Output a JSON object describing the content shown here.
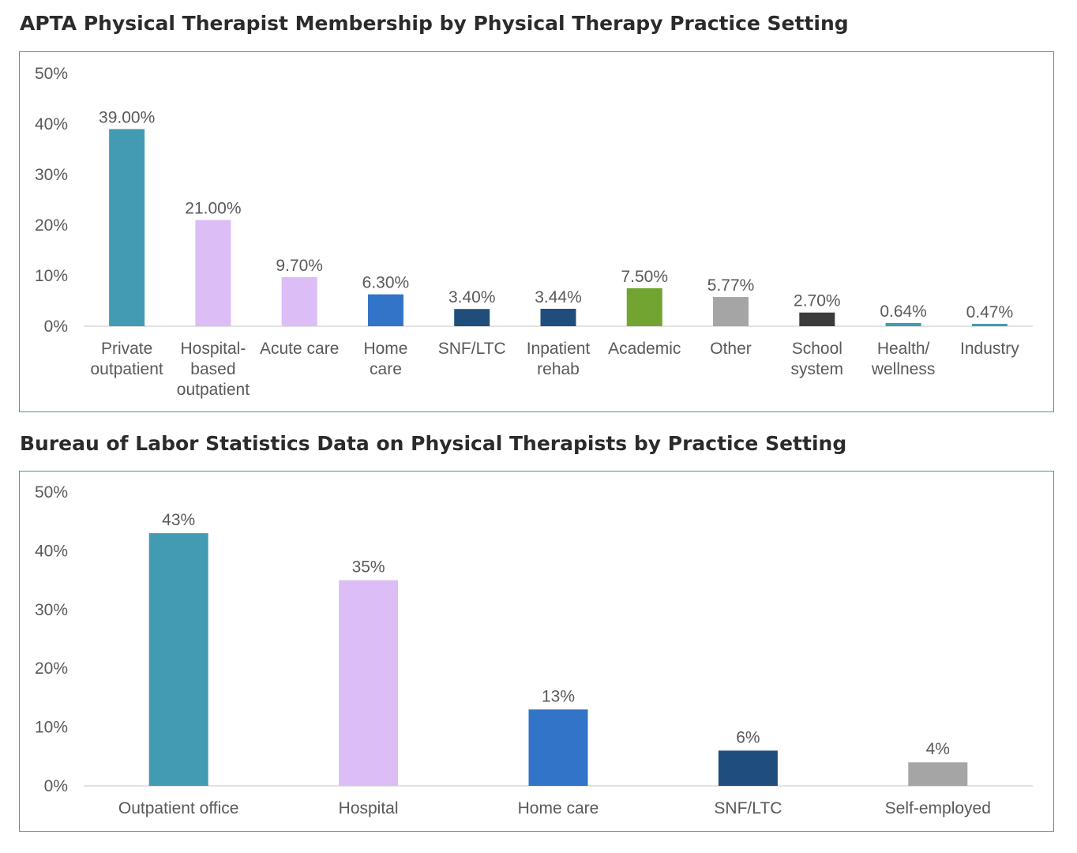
{
  "chart_data": [
    {
      "type": "bar",
      "title": "APTA Physical Therapist Membership by Physical Therapy Practice Setting",
      "categories": [
        [
          "Private",
          "outpatient"
        ],
        [
          "Hospital-",
          "based",
          "outpatient"
        ],
        [
          "Acute care"
        ],
        [
          "Home",
          "care"
        ],
        [
          "SNF/LTC"
        ],
        [
          "Inpatient",
          "rehab"
        ],
        [
          "Academic"
        ],
        [
          "Other"
        ],
        [
          "School",
          "system"
        ],
        [
          "Health/",
          "wellness"
        ],
        [
          "Industry"
        ]
      ],
      "values": [
        39.0,
        21.0,
        9.7,
        6.3,
        3.4,
        3.44,
        7.5,
        5.77,
        2.7,
        0.64,
        0.47
      ],
      "data_labels": [
        "39.00%",
        "21.00%",
        "9.70%",
        "6.30%",
        "3.40%",
        "3.44%",
        "7.50%",
        "5.77%",
        "2.70%",
        "0.64%",
        "0.47%"
      ],
      "colors": [
        "#429bb2",
        "#dcbdf6",
        "#dcbdf6",
        "#3174c8",
        "#1f4e7d",
        "#1f4e7d",
        "#72a432",
        "#a5a5a5",
        "#3b3b3b",
        "#429bb2",
        "#429bb2"
      ],
      "yticks": [
        "0%",
        "10%",
        "20%",
        "30%",
        "40%",
        "50%"
      ],
      "ylim": [
        0,
        50
      ],
      "xlabel": "",
      "ylabel": "",
      "grid": false,
      "legend": "none"
    },
    {
      "type": "bar",
      "title": "Bureau of Labor Statistics Data on Physical Therapists by Practice Setting",
      "categories": [
        [
          "Outpatient office"
        ],
        [
          "Hospital"
        ],
        [
          "Home care"
        ],
        [
          "SNF/LTC"
        ],
        [
          "Self-employed"
        ]
      ],
      "values": [
        43,
        35,
        13,
        6,
        4
      ],
      "data_labels": [
        "43%",
        "35%",
        "13%",
        "6%",
        "4%"
      ],
      "colors": [
        "#429bb2",
        "#dcbdf6",
        "#3174c8",
        "#1f4e7d",
        "#a5a5a5"
      ],
      "yticks": [
        "0%",
        "10%",
        "20%",
        "30%",
        "40%",
        "50%"
      ],
      "ylim": [
        0,
        50
      ],
      "xlabel": "",
      "ylabel": "",
      "grid": false,
      "legend": "none"
    }
  ]
}
